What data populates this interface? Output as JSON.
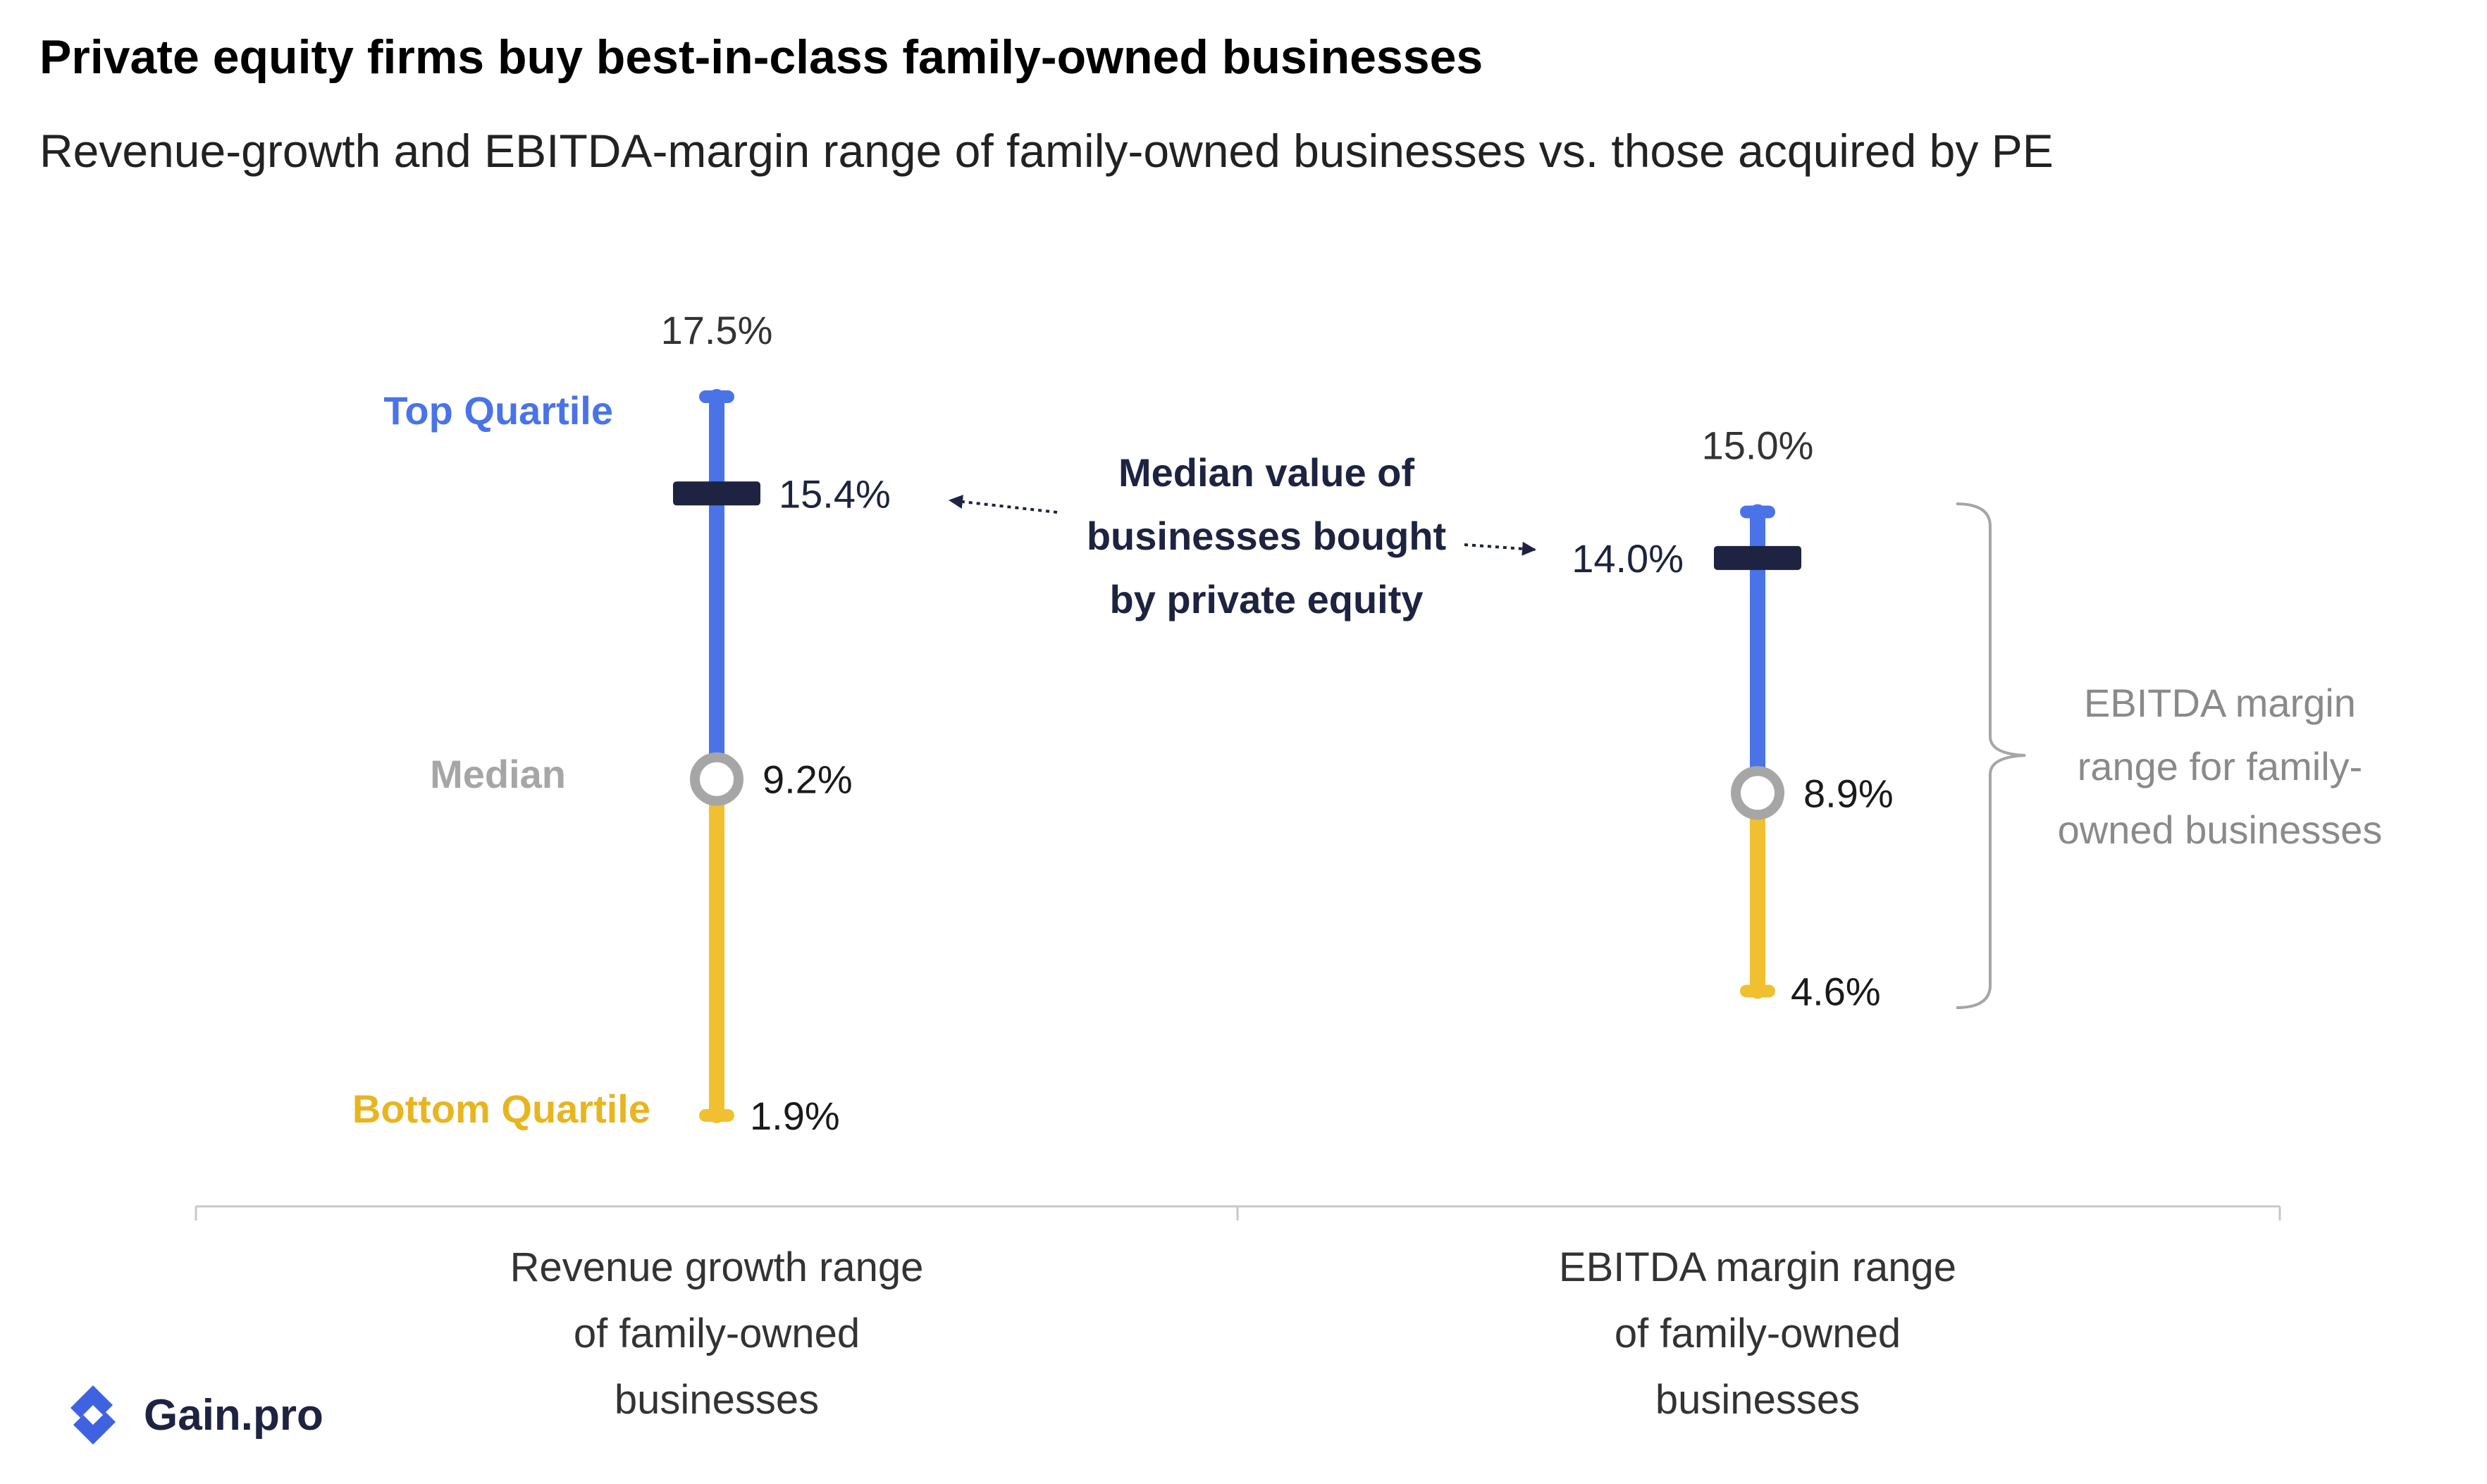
{
  "header": {
    "title": "Private equity firms buy best-in-class family-owned businesses",
    "subtitle": "Revenue-growth and EBITDA-margin range of family-owned businesses vs. those acquired by PE"
  },
  "chart_data": {
    "type": "range",
    "categories": [
      "Revenue growth range of family-owned businesses",
      "EBITDA margin range of family-owned businesses"
    ],
    "series": [
      {
        "category": "Revenue growth range of family-owned businesses",
        "category_lines": [
          "Revenue growth range",
          "of family-owned",
          "businesses"
        ],
        "top_quartile": 17.5,
        "median": 9.2,
        "bottom_quartile": 1.9,
        "pe_median": 15.4,
        "labels": {
          "top": "17.5%",
          "median": "9.2%",
          "bottom": "1.9%",
          "pe": "15.4%"
        }
      },
      {
        "category": "EBITDA margin range of family-owned businesses",
        "category_lines": [
          "EBITDA margin range",
          "of family-owned",
          "businesses"
        ],
        "top_quartile": 15.0,
        "median": 8.9,
        "bottom_quartile": 4.6,
        "pe_median": 14.0,
        "labels": {
          "top": "15.0%",
          "median": "8.9%",
          "bottom": "4.6%",
          "pe": "14.0%"
        }
      }
    ],
    "legend": {
      "top_quartile": "Top Quartile",
      "median": "Median",
      "bottom_quartile": "Bottom Quartile"
    },
    "annotation": [
      "Median value of",
      "businesses bought",
      "by private equity"
    ],
    "bracket_label": [
      "EBITDA margin",
      "range for family-",
      "owned businesses"
    ],
    "colors": {
      "top_quartile": "#4a73e8",
      "bottom_quartile": "#f0c030",
      "median_ring": "#a6a6a6",
      "pe_marker": "#1d2340",
      "top_label": "#4a73e8",
      "median_label": "#a6a6a6",
      "bottom_label": "#e8b520",
      "annotation": "#1d2340"
    }
  },
  "logo": {
    "text": "Gain.pro",
    "icon": "gain-pro-logo-icon",
    "color": "#3f63e0"
  }
}
